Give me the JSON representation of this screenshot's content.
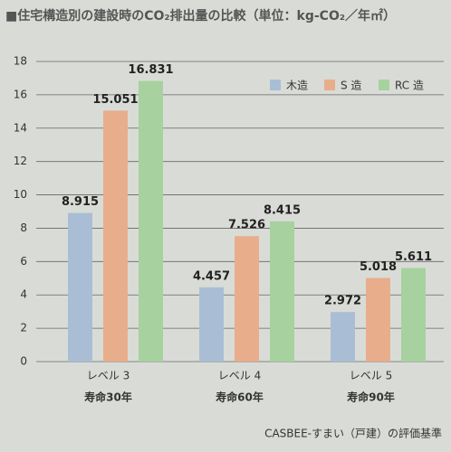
{
  "chart_data": {
    "type": "bar",
    "title": "■住宅構造別の建設時のCO₂排出量の比較（単位：kg-CO₂／年㎡）",
    "categories": [
      "レベル 3",
      "レベル 4",
      "レベル 5"
    ],
    "category_sublabels": [
      "寿命30年",
      "寿命60年",
      "寿命90年"
    ],
    "series": [
      {
        "name": "木造",
        "color": "#a9bed5",
        "values": [
          8.915,
          4.457,
          2.972
        ]
      },
      {
        "name": "S 造",
        "color": "#e8ad8b",
        "values": [
          15.051,
          7.526,
          5.018
        ]
      },
      {
        "name": "RC 造",
        "color": "#a7d19f",
        "values": [
          16.831,
          8.415,
          5.611
        ]
      }
    ],
    "ylim": [
      0,
      18
    ],
    "yticks": [
      0,
      2,
      4,
      6,
      8,
      10,
      12,
      14,
      16,
      18
    ],
    "grid": true,
    "legend": "top-right",
    "footnote": "CASBEE-すまい（戸建）の評価基準"
  }
}
